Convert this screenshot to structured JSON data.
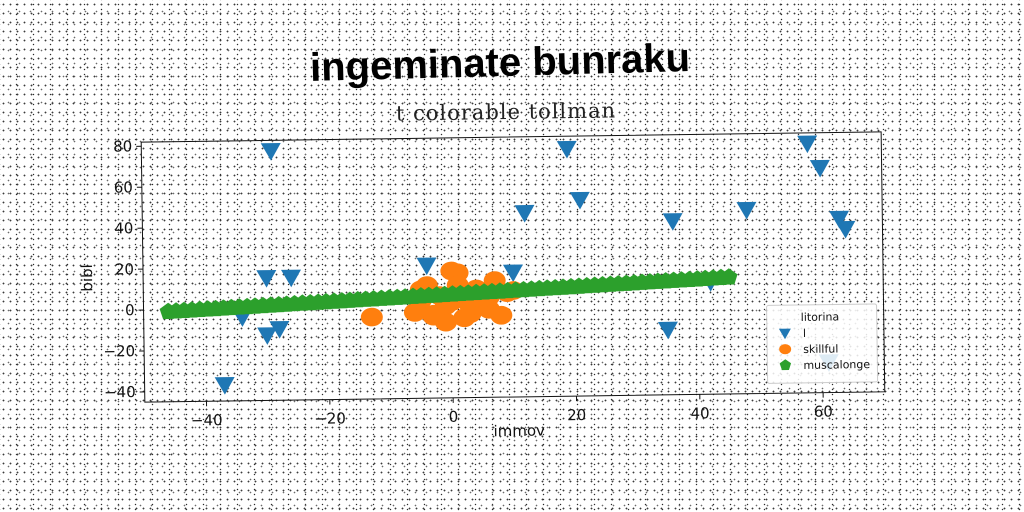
{
  "chart_data": {
    "type": "scatter",
    "title": "ingeminate bunraku",
    "subtitle": "t colorable tollman",
    "xlabel": "immov",
    "ylabel": "bibl",
    "xlim": [
      -50,
      70
    ],
    "ylim": [
      -45,
      82
    ],
    "xticks": [
      -40,
      -20,
      0,
      20,
      40,
      60
    ],
    "yticks": [
      -40,
      -20,
      0,
      20,
      40,
      60,
      80
    ],
    "xtick_labels": [
      "−40",
      "−20",
      "0",
      "20",
      "40",
      "60"
    ],
    "ytick_labels": [
      "−40",
      "−20",
      "0",
      "20",
      "40",
      "60",
      "80"
    ],
    "grid": false,
    "legend": {
      "title": "litorina",
      "placement": "lower-right"
    },
    "series": [
      {
        "name": "l",
        "marker": "triangle-down",
        "color": "#1f77b4",
        "x": [
          -29,
          -37,
          -30,
          -26,
          -30,
          -28,
          -34,
          -4,
          10,
          12,
          19,
          21,
          35,
          36,
          42,
          48,
          58,
          60,
          63,
          64,
          61
        ],
        "y": [
          77,
          -37,
          15,
          15,
          -13,
          -10,
          -4,
          20,
          16,
          45,
          76,
          51,
          -13,
          40,
          10,
          45,
          77,
          65,
          40,
          35,
          -30
        ]
      },
      {
        "name": "skillful",
        "marker": "circle",
        "color": "#ff7f0e",
        "x": [
          -13,
          -6,
          -5,
          -4,
          -3,
          -2,
          -1,
          0,
          1,
          1,
          2,
          3,
          3,
          4,
          5,
          6,
          7,
          8,
          9,
          10,
          -1,
          0,
          2,
          4,
          -5,
          -3,
          6
        ],
        "y": [
          -5,
          -3,
          3,
          10,
          -5,
          5,
          0,
          17,
          16,
          10,
          5,
          -4,
          0,
          8,
          6,
          -2,
          12,
          -5,
          6,
          7,
          -8,
          2,
          -6,
          4,
          8,
          -4,
          4
        ]
      },
      {
        "name": "muscalonge",
        "marker": "pentagon",
        "color": "#2ca02c",
        "line": {
          "x0": -46,
          "y0": -1,
          "x1": 45,
          "y1": 12,
          "n": 72
        }
      }
    ]
  }
}
